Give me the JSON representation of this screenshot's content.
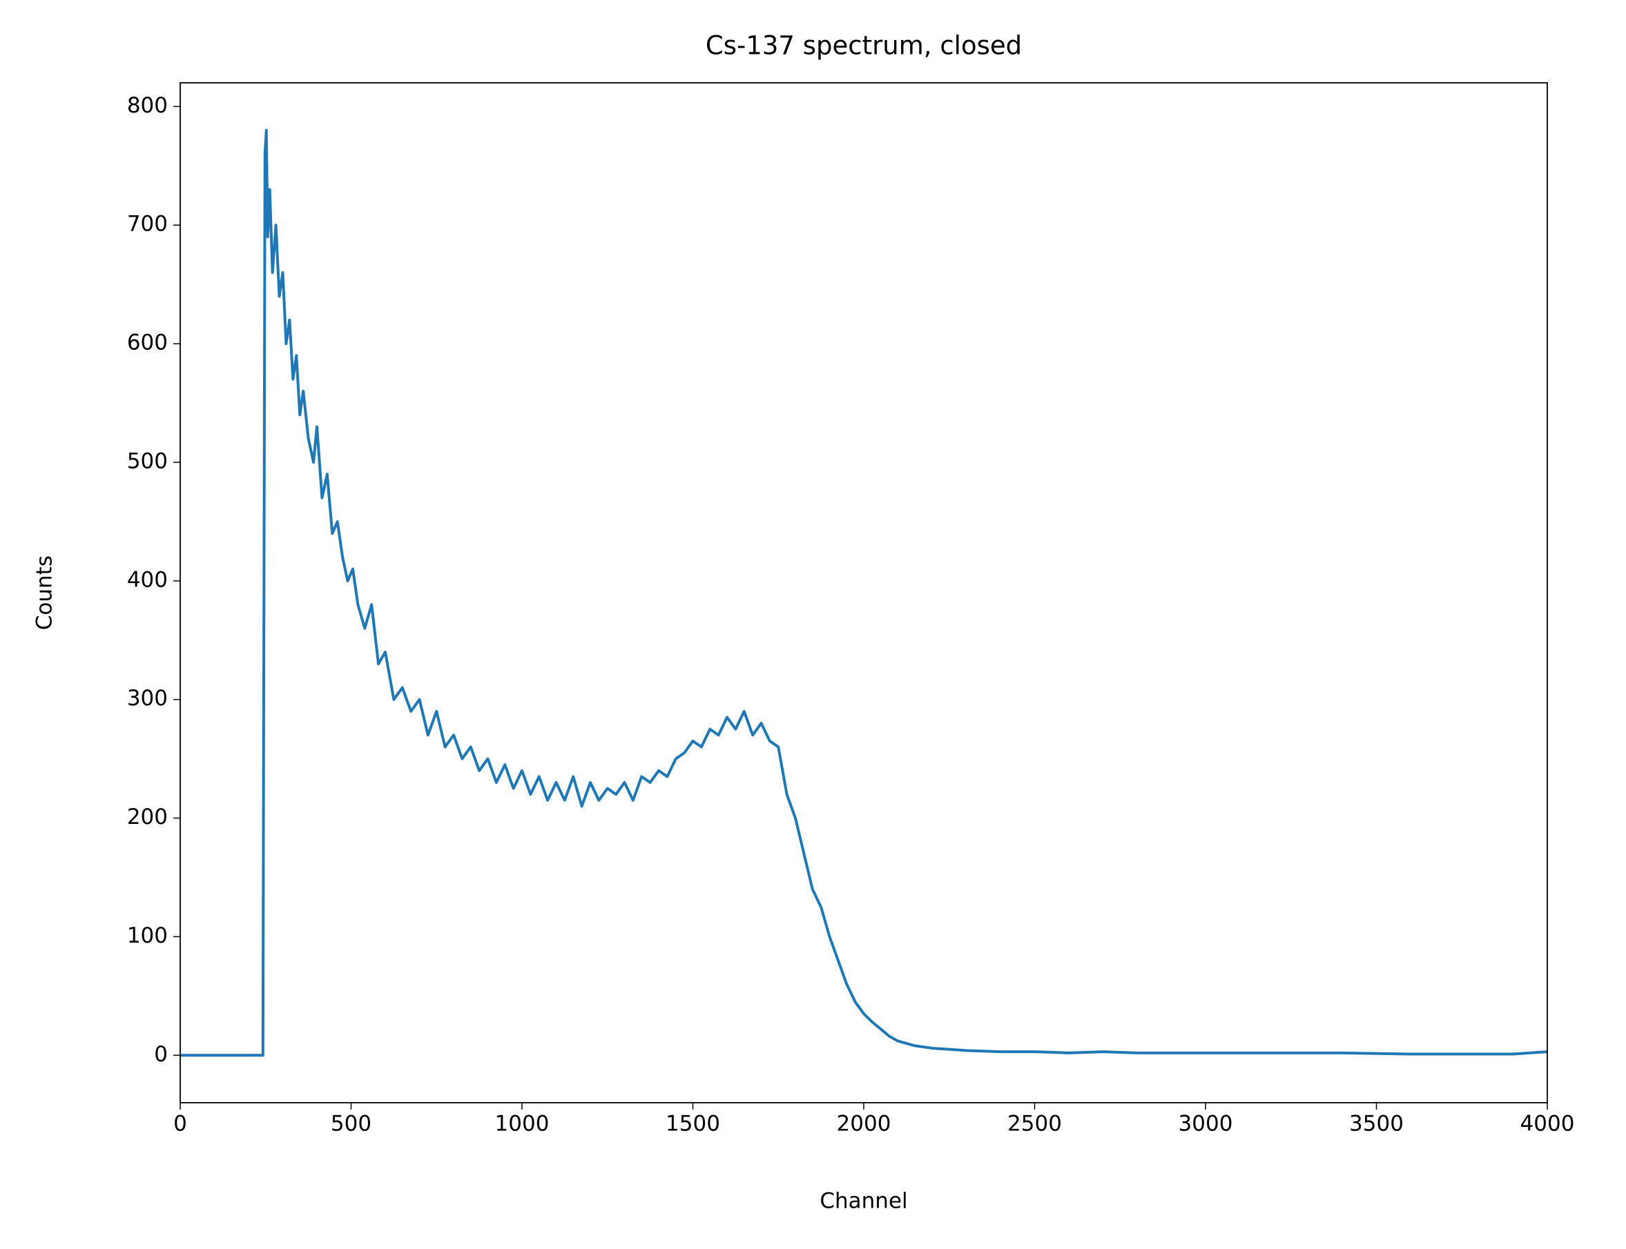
{
  "chart_data": {
    "type": "line",
    "title": "Cs-137 spectrum, closed",
    "x_label": "Channel",
    "y_label": "Counts",
    "x": [
      0,
      242,
      248,
      252,
      256,
      262,
      270,
      280,
      290,
      300,
      310,
      320,
      330,
      340,
      350,
      360,
      375,
      390,
      400,
      415,
      430,
      445,
      460,
      475,
      490,
      505,
      520,
      540,
      560,
      580,
      600,
      625,
      650,
      675,
      700,
      725,
      750,
      775,
      800,
      825,
      850,
      875,
      900,
      925,
      950,
      975,
      1000,
      1025,
      1050,
      1075,
      1100,
      1125,
      1150,
      1175,
      1200,
      1225,
      1250,
      1275,
      1300,
      1325,
      1350,
      1375,
      1400,
      1425,
      1450,
      1475,
      1500,
      1525,
      1550,
      1575,
      1600,
      1625,
      1650,
      1675,
      1700,
      1725,
      1750,
      1775,
      1800,
      1825,
      1850,
      1875,
      1900,
      1925,
      1950,
      1975,
      2000,
      2025,
      2050,
      2075,
      2100,
      2125,
      2150,
      2200,
      2250,
      2300,
      2400,
      2500,
      2600,
      2700,
      2800,
      2900,
      3000,
      3200,
      3400,
      3600,
      3800,
      3900,
      4000
    ],
    "series": [
      {
        "name": "Counts",
        "color": "#1f77b4",
        "values": [
          0,
          0,
          760,
          780,
          690,
          730,
          660,
          700,
          640,
          660,
          600,
          620,
          570,
          590,
          540,
          560,
          520,
          500,
          530,
          470,
          490,
          440,
          450,
          420,
          400,
          410,
          380,
          360,
          380,
          330,
          340,
          300,
          310,
          290,
          300,
          270,
          290,
          260,
          270,
          250,
          260,
          240,
          250,
          230,
          245,
          225,
          240,
          220,
          235,
          215,
          230,
          215,
          235,
          210,
          230,
          215,
          225,
          220,
          230,
          215,
          235,
          230,
          240,
          235,
          250,
          255,
          265,
          260,
          275,
          270,
          285,
          275,
          290,
          270,
          280,
          265,
          260,
          220,
          200,
          170,
          140,
          125,
          100,
          80,
          60,
          45,
          35,
          28,
          22,
          16,
          12,
          10,
          8,
          6,
          5,
          4,
          3,
          3,
          2,
          3,
          2,
          2,
          2,
          2,
          2,
          1,
          1,
          1,
          3
        ]
      }
    ],
    "xlim": [
      0,
      4000
    ],
    "ylim": [
      -40,
      820
    ],
    "xticks": [
      0,
      500,
      1000,
      1500,
      2000,
      2500,
      3000,
      3500,
      4000
    ],
    "yticks": [
      0,
      100,
      200,
      300,
      400,
      500,
      600,
      700,
      800
    ]
  }
}
